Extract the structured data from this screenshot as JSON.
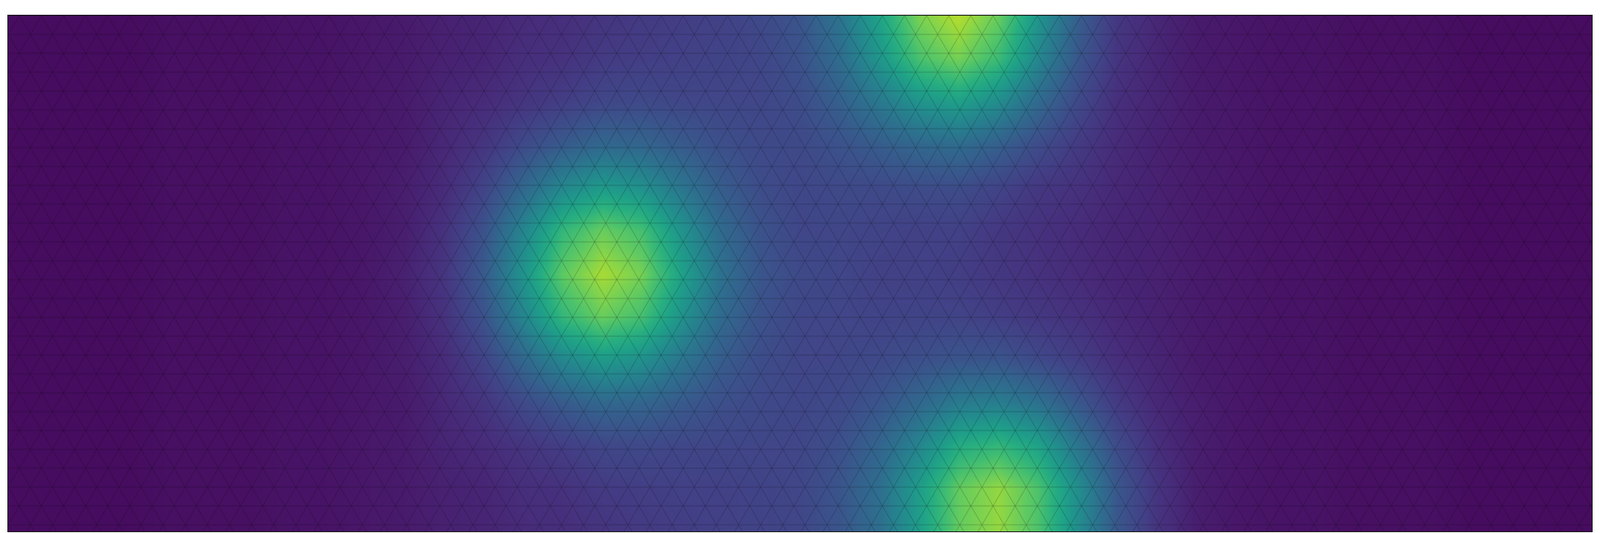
{
  "chart_data": {
    "type": "heatmap",
    "color": "Viridis",
    "grid": false,
    "tick_labels": false,
    "xlim": [
      0,
      40
    ],
    "ylim": [
      12,
      0
    ],
    "zlim": [
      0,
      1
    ],
    "x": [
      0,
      1,
      2,
      3,
      4,
      5,
      6,
      7,
      8,
      9,
      10,
      11,
      12,
      13,
      14,
      15,
      16,
      17,
      18,
      19,
      20,
      21,
      22,
      23,
      24,
      25,
      26,
      27,
      28,
      29,
      30,
      31,
      32,
      33,
      34,
      35,
      36,
      37,
      38,
      39,
      40
    ],
    "y": [
      0,
      1,
      2,
      3,
      4,
      5,
      6,
      7,
      8,
      9,
      10,
      11,
      12
    ],
    "z": [
      [
        0.03,
        0.03,
        0.03,
        0.03,
        0.04,
        0.04,
        0.04,
        0.05,
        0.05,
        0.06,
        0.07,
        0.09,
        0.1,
        0.12,
        0.13,
        0.15,
        0.17,
        0.18,
        0.19,
        0.22,
        0.26,
        0.38,
        0.58,
        0.8,
        0.89,
        0.77,
        0.52,
        0.3,
        0.16,
        0.11,
        0.07,
        0.06,
        0.05,
        0.05,
        0.04,
        0.04,
        0.04,
        0.03,
        0.03,
        0.03,
        0.03
      ],
      [
        0.03,
        0.03,
        0.03,
        0.03,
        0.04,
        0.04,
        0.04,
        0.05,
        0.05,
        0.06,
        0.07,
        0.09,
        0.1,
        0.13,
        0.14,
        0.17,
        0.18,
        0.19,
        0.2,
        0.21,
        0.25,
        0.35,
        0.52,
        0.71,
        0.79,
        0.68,
        0.46,
        0.27,
        0.15,
        0.1,
        0.07,
        0.06,
        0.05,
        0.05,
        0.04,
        0.04,
        0.04,
        0.03,
        0.03,
        0.03,
        0.03
      ],
      [
        0.03,
        0.03,
        0.03,
        0.03,
        0.04,
        0.04,
        0.04,
        0.05,
        0.05,
        0.06,
        0.07,
        0.1,
        0.12,
        0.15,
        0.18,
        0.21,
        0.22,
        0.21,
        0.21,
        0.21,
        0.23,
        0.3,
        0.4,
        0.51,
        0.56,
        0.48,
        0.34,
        0.22,
        0.13,
        0.1,
        0.07,
        0.06,
        0.05,
        0.05,
        0.04,
        0.04,
        0.04,
        0.03,
        0.03,
        0.03,
        0.03
      ],
      [
        0.03,
        0.03,
        0.03,
        0.03,
        0.04,
        0.04,
        0.04,
        0.05,
        0.05,
        0.06,
        0.07,
        0.11,
        0.15,
        0.22,
        0.28,
        0.33,
        0.32,
        0.28,
        0.24,
        0.22,
        0.22,
        0.25,
        0.29,
        0.33,
        0.35,
        0.3,
        0.23,
        0.17,
        0.12,
        0.09,
        0.07,
        0.06,
        0.05,
        0.05,
        0.04,
        0.04,
        0.04,
        0.03,
        0.03,
        0.03,
        0.03
      ],
      [
        0.03,
        0.03,
        0.03,
        0.03,
        0.04,
        0.04,
        0.04,
        0.05,
        0.05,
        0.06,
        0.08,
        0.12,
        0.2,
        0.33,
        0.46,
        0.54,
        0.5,
        0.39,
        0.29,
        0.23,
        0.21,
        0.22,
        0.22,
        0.23,
        0.23,
        0.2,
        0.16,
        0.14,
        0.11,
        0.09,
        0.07,
        0.06,
        0.05,
        0.05,
        0.04,
        0.04,
        0.04,
        0.03,
        0.03,
        0.03,
        0.03
      ],
      [
        0.03,
        0.03,
        0.03,
        0.03,
        0.04,
        0.04,
        0.04,
        0.05,
        0.05,
        0.06,
        0.08,
        0.14,
        0.25,
        0.45,
        0.66,
        0.77,
        0.7,
        0.51,
        0.34,
        0.25,
        0.21,
        0.21,
        0.2,
        0.19,
        0.19,
        0.16,
        0.14,
        0.12,
        0.1,
        0.09,
        0.07,
        0.06,
        0.05,
        0.05,
        0.04,
        0.04,
        0.04,
        0.03,
        0.03,
        0.03,
        0.03
      ],
      [
        0.03,
        0.03,
        0.03,
        0.03,
        0.04,
        0.04,
        0.04,
        0.05,
        0.05,
        0.06,
        0.09,
        0.15,
        0.28,
        0.51,
        0.75,
        0.87,
        0.79,
        0.57,
        0.37,
        0.26,
        0.22,
        0.21,
        0.19,
        0.19,
        0.18,
        0.16,
        0.14,
        0.12,
        0.1,
        0.09,
        0.07,
        0.06,
        0.05,
        0.05,
        0.04,
        0.04,
        0.04,
        0.03,
        0.03,
        0.03,
        0.03
      ],
      [
        0.03,
        0.03,
        0.03,
        0.03,
        0.04,
        0.04,
        0.04,
        0.05,
        0.05,
        0.06,
        0.08,
        0.14,
        0.25,
        0.45,
        0.66,
        0.77,
        0.7,
        0.51,
        0.34,
        0.25,
        0.21,
        0.21,
        0.2,
        0.2,
        0.2,
        0.18,
        0.16,
        0.14,
        0.11,
        0.09,
        0.07,
        0.06,
        0.05,
        0.05,
        0.04,
        0.04,
        0.04,
        0.03,
        0.03,
        0.03,
        0.03
      ],
      [
        0.03,
        0.03,
        0.03,
        0.03,
        0.04,
        0.04,
        0.04,
        0.05,
        0.05,
        0.06,
        0.08,
        0.12,
        0.2,
        0.33,
        0.46,
        0.54,
        0.5,
        0.39,
        0.29,
        0.23,
        0.21,
        0.21,
        0.22,
        0.24,
        0.26,
        0.26,
        0.22,
        0.18,
        0.13,
        0.1,
        0.07,
        0.06,
        0.05,
        0.05,
        0.04,
        0.04,
        0.04,
        0.03,
        0.03,
        0.03,
        0.03
      ],
      [
        0.03,
        0.03,
        0.03,
        0.03,
        0.04,
        0.04,
        0.04,
        0.05,
        0.05,
        0.06,
        0.07,
        0.11,
        0.15,
        0.22,
        0.28,
        0.33,
        0.32,
        0.28,
        0.24,
        0.22,
        0.21,
        0.22,
        0.26,
        0.33,
        0.41,
        0.42,
        0.37,
        0.27,
        0.17,
        0.11,
        0.08,
        0.06,
        0.05,
        0.05,
        0.04,
        0.04,
        0.04,
        0.03,
        0.03,
        0.03,
        0.03
      ],
      [
        0.03,
        0.03,
        0.03,
        0.03,
        0.04,
        0.04,
        0.04,
        0.05,
        0.05,
        0.06,
        0.07,
        0.1,
        0.12,
        0.15,
        0.18,
        0.21,
        0.22,
        0.21,
        0.21,
        0.21,
        0.21,
        0.24,
        0.32,
        0.45,
        0.61,
        0.66,
        0.57,
        0.39,
        0.23,
        0.13,
        0.08,
        0.06,
        0.05,
        0.05,
        0.04,
        0.04,
        0.04,
        0.03,
        0.03,
        0.03,
        0.03
      ],
      [
        0.03,
        0.03,
        0.03,
        0.03,
        0.04,
        0.04,
        0.04,
        0.05,
        0.05,
        0.06,
        0.07,
        0.09,
        0.1,
        0.13,
        0.14,
        0.17,
        0.18,
        0.19,
        0.19,
        0.2,
        0.21,
        0.26,
        0.36,
        0.55,
        0.76,
        0.84,
        0.72,
        0.49,
        0.27,
        0.15,
        0.08,
        0.06,
        0.05,
        0.05,
        0.04,
        0.04,
        0.04,
        0.03,
        0.03,
        0.03,
        0.03
      ],
      [
        0.03,
        0.03,
        0.03,
        0.03,
        0.04,
        0.04,
        0.04,
        0.05,
        0.05,
        0.06,
        0.07,
        0.09,
        0.1,
        0.12,
        0.13,
        0.15,
        0.17,
        0.18,
        0.19,
        0.2,
        0.21,
        0.26,
        0.36,
        0.55,
        0.76,
        0.84,
        0.72,
        0.49,
        0.27,
        0.15,
        0.08,
        0.06,
        0.05,
        0.05,
        0.04,
        0.04,
        0.04,
        0.03,
        0.03,
        0.03,
        0.03
      ]
    ]
  }
}
